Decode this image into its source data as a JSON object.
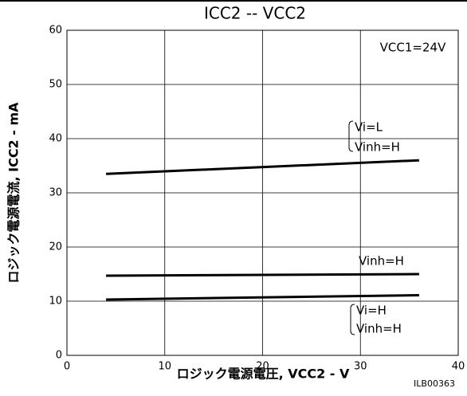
{
  "chart_data": {
    "type": "line",
    "title": "ICC2 -- VCC2",
    "x_label": "ロジック電源電圧, VCC2 - V",
    "y_label": "ロジック電源電流, ICC2 - mA",
    "x": [
      4,
      36
    ],
    "series": [
      {
        "color": "#000000",
        "values": [
          33.5,
          36
        ]
      },
      {
        "color": "#000000",
        "values": [
          14.7,
          15
        ]
      },
      {
        "color": "#000000",
        "values": [
          10.3,
          11.1
        ]
      }
    ],
    "annotations": [
      "VCC1=24V",
      "Vi=L",
      "Vinh=H",
      "Vinh=H",
      "Vi=H",
      "Vinh=H",
      "ILB00363"
    ],
    "xlim": [
      0,
      40
    ],
    "xticks": [
      0,
      10,
      20,
      30,
      40
    ],
    "ylim": [
      0,
      60
    ],
    "yticks": [
      0,
      10,
      20,
      30,
      40,
      50,
      60
    ],
    "grid": true
  }
}
